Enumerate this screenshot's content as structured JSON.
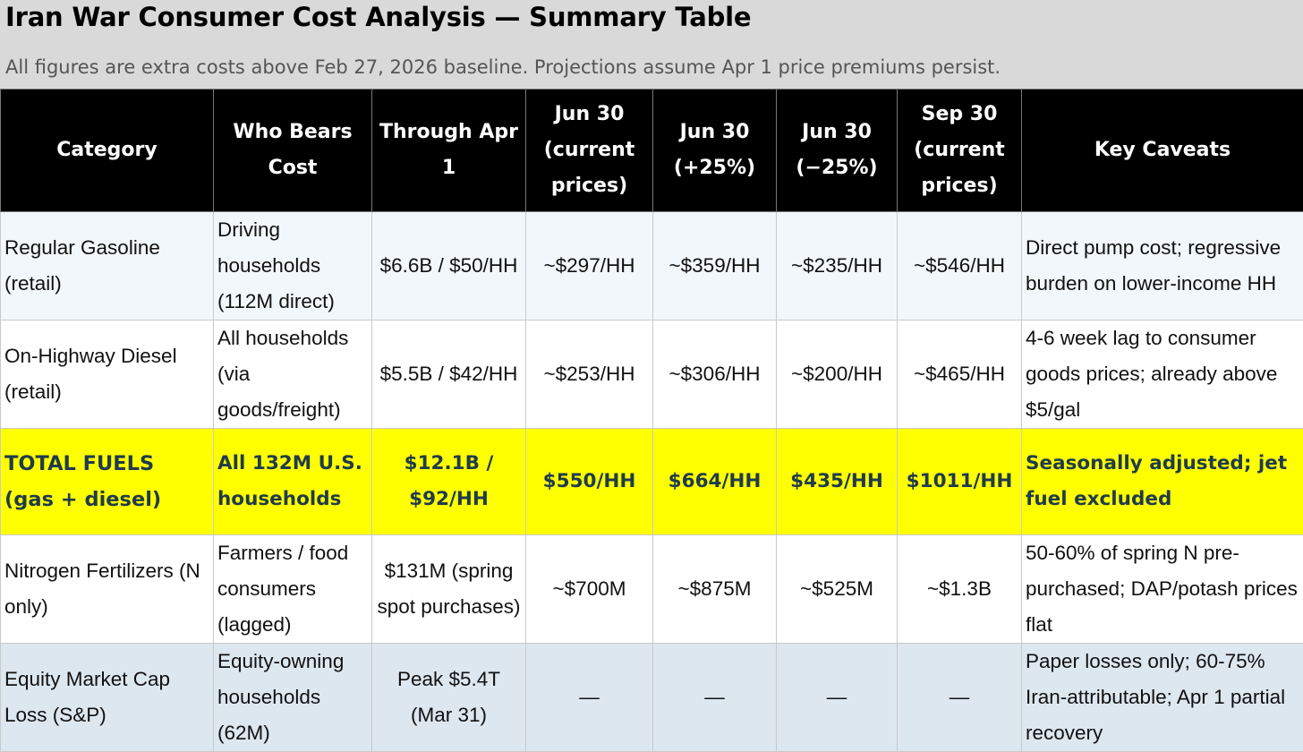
{
  "header": {
    "title": "Iran War Consumer Cost Analysis — Summary Table",
    "subtitle": "All figures are extra costs above Feb 27, 2026 baseline. Projections assume Apr 1 price premiums persist."
  },
  "columns": [
    "Category",
    "Who Bears Cost",
    "Through Apr 1",
    "Jun 30 (current prices)",
    "Jun 30 (+25%)",
    "Jun 30 (−25%)",
    "Sep 30 (current prices)",
    "Key Caveats"
  ],
  "rows": [
    {
      "category": "Regular Gasoline (retail)",
      "who": "Driving households (112M direct)",
      "through": "$6.6B / $50/HH",
      "jun_current": "~$297/HH",
      "jun_plus": "~$359/HH",
      "jun_minus": "~$235/HH",
      "sep_current": "~$546/HH",
      "caveats": "Direct pump cost; regressive burden on lower-income HH"
    },
    {
      "category": "On-Highway Diesel (retail)",
      "who": "All households (via goods/freight)",
      "through": "$5.5B / $42/HH",
      "jun_current": "~$253/HH",
      "jun_plus": "~$306/HH",
      "jun_minus": "~$200/HH",
      "sep_current": "~$465/HH",
      "caveats": "4-6 week lag to consumer goods prices; already above $5/gal"
    },
    {
      "category": "TOTAL FUELS (gas + diesel)",
      "who": "All 132M U.S. households",
      "through": "$12.1B / $92/HH",
      "jun_current": "$550/HH",
      "jun_plus": "$664/HH",
      "jun_minus": "$435/HH",
      "sep_current": "$1011/HH",
      "caveats": "Seasonally adjusted; jet fuel excluded"
    },
    {
      "category": "Nitrogen Fertilizers (N only)",
      "who": "Farmers / food consumers (lagged)",
      "through": "$131M (spring spot purchases)",
      "jun_current": "~$700M",
      "jun_plus": "~$875M",
      "jun_minus": "~$525M",
      "sep_current": "~$1.3B",
      "caveats": "50-60% of spring N pre-purchased; DAP/potash prices flat"
    },
    {
      "category": "Equity Market Cap Loss (S&P)",
      "who": "Equity-owning households (62M)",
      "through": "Peak $5.4T (Mar 31)",
      "jun_current": "—",
      "jun_plus": "—",
      "jun_minus": "—",
      "sep_current": "—",
      "caveats": "Paper losses only; 60-75% Iran-attributable; Apr 1 partial recovery"
    }
  ],
  "colors": {
    "header_bg": "#d9d9d9",
    "table_header_bg": "#000000",
    "total_row_bg": "#ffff00",
    "total_row_text": "#1f3b4d",
    "gas_row_bg": "#f2f7fb",
    "equity_row_bg": "#dde7f0"
  }
}
